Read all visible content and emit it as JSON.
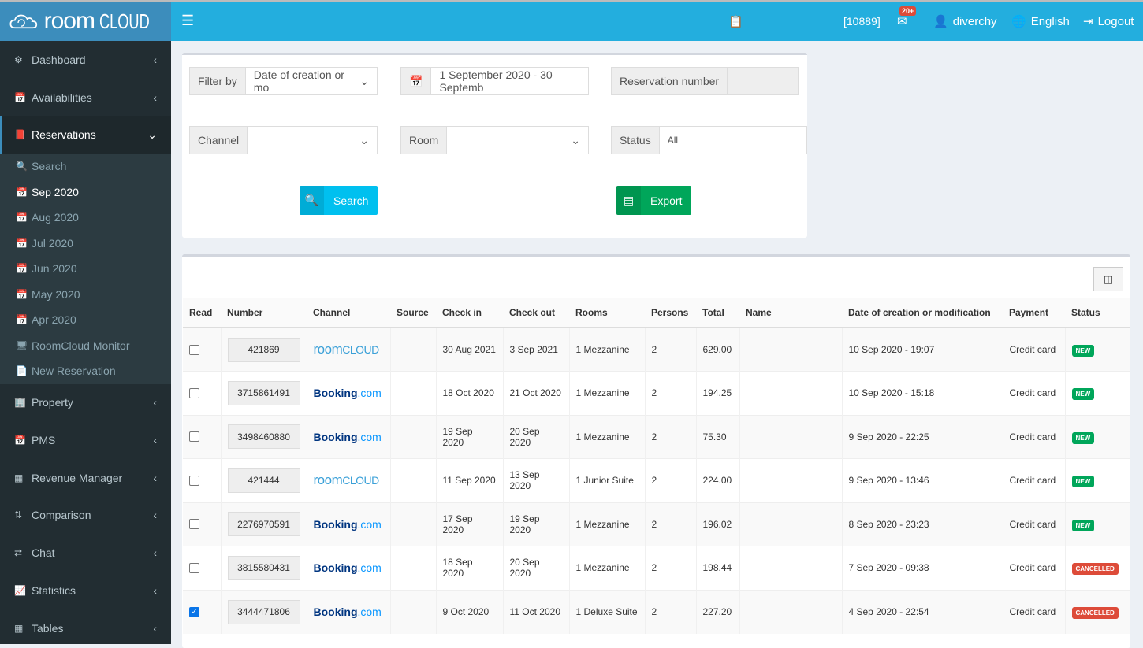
{
  "header": {
    "logo_word1": "room",
    "logo_word2": "CLOUD",
    "account_id": "[10889]",
    "mail_badge": "20+",
    "user": "diverchy",
    "language": "English",
    "logout": "Logout"
  },
  "sidebar": {
    "items": [
      {
        "label": "Dashboard",
        "icon": "gear"
      },
      {
        "label": "Availabilities",
        "icon": "calendar"
      },
      {
        "label": "Reservations",
        "icon": "book",
        "active": true
      }
    ],
    "sub": [
      {
        "label": "Search",
        "icon": "search"
      },
      {
        "label": "Sep 2020",
        "icon": "calendar",
        "current": true
      },
      {
        "label": "Aug 2020",
        "icon": "calendar"
      },
      {
        "label": "Jul 2020",
        "icon": "calendar"
      },
      {
        "label": "Jun 2020",
        "icon": "calendar"
      },
      {
        "label": "May 2020",
        "icon": "calendar"
      },
      {
        "label": "Apr 2020",
        "icon": "calendar"
      },
      {
        "label": "RoomCloud Monitor",
        "icon": "monitor"
      },
      {
        "label": "New Reservation",
        "icon": "file"
      }
    ],
    "items2": [
      {
        "label": "Property",
        "icon": "building"
      },
      {
        "label": "PMS",
        "icon": "calendar"
      },
      {
        "label": "Revenue Manager",
        "icon": "calculator"
      },
      {
        "label": "Comparison",
        "icon": "sort"
      },
      {
        "label": "Chat",
        "icon": "exchange"
      },
      {
        "label": "Statistics",
        "icon": "area-chart"
      },
      {
        "label": "Tables",
        "icon": "table"
      }
    ]
  },
  "filters": {
    "filter_by_label": "Filter by",
    "filter_by_value": "Date of creation or mo",
    "date_range": "1 September 2020 - 30 Septemb",
    "reservation_number_label": "Reservation number",
    "reservation_number_value": "",
    "channel_label": "Channel",
    "room_label": "Room",
    "status_label": "Status",
    "status_value": "All",
    "search": "Search",
    "export": "Export"
  },
  "table": {
    "headers": [
      "Read",
      "Number",
      "Channel",
      "Source",
      "Check in",
      "Check out",
      "Rooms",
      "Persons",
      "Total",
      "Name",
      "Date of creation or modification",
      "Payment",
      "Status"
    ],
    "rows": [
      {
        "read": false,
        "number": "421869",
        "channel": "roomcloud",
        "source": "",
        "checkin": "30 Aug 2021",
        "checkout": "3 Sep 2021",
        "rooms": "1 Mezzanine",
        "persons": "2",
        "total": "629.00",
        "name": "",
        "date": "10 Sep 2020 - 19:07",
        "payment": "Credit card",
        "status": "NEW"
      },
      {
        "read": false,
        "number": "3715861491",
        "channel": "booking",
        "source": "",
        "checkin": "18 Oct 2020",
        "checkout": "21 Oct 2020",
        "rooms": "1 Mezzanine",
        "persons": "2",
        "total": "194.25",
        "name": "",
        "date": "10 Sep 2020 - 15:18",
        "payment": "Credit card",
        "status": "NEW"
      },
      {
        "read": false,
        "number": "3498460880",
        "channel": "booking",
        "source": "",
        "checkin": "19 Sep 2020",
        "checkout": "20 Sep 2020",
        "rooms": "1 Mezzanine",
        "persons": "2",
        "total": "75.30",
        "name": "",
        "date": "9 Sep 2020 - 22:25",
        "payment": "Credit card",
        "status": "NEW"
      },
      {
        "read": false,
        "number": "421444",
        "channel": "roomcloud",
        "source": "",
        "checkin": "11 Sep 2020",
        "checkout": "13 Sep 2020",
        "rooms": "1 Junior Suite",
        "persons": "2",
        "total": "224.00",
        "name": "",
        "date": "9 Sep 2020 - 13:46",
        "payment": "Credit card",
        "status": "NEW"
      },
      {
        "read": false,
        "number": "2276970591",
        "channel": "booking",
        "source": "",
        "checkin": "17 Sep 2020",
        "checkout": "19 Sep 2020",
        "rooms": "1 Mezzanine",
        "persons": "2",
        "total": "196.02",
        "name": "",
        "date": "8 Sep 2020 - 23:23",
        "payment": "Credit card",
        "status": "NEW"
      },
      {
        "read": false,
        "number": "3815580431",
        "channel": "booking",
        "source": "",
        "checkin": "18 Sep 2020",
        "checkout": "20 Sep 2020",
        "rooms": "1 Mezzanine",
        "persons": "2",
        "total": "198.44",
        "name": "",
        "date": "7 Sep 2020 - 09:38",
        "payment": "Credit card",
        "status": "CANCELLED"
      },
      {
        "read": true,
        "number": "3444471806",
        "channel": "booking",
        "source": "",
        "checkin": "9 Oct 2020",
        "checkout": "11 Oct 2020",
        "rooms": "1 Deluxe Suite",
        "persons": "2",
        "total": "227.20",
        "name": "",
        "date": "4 Sep 2020 - 22:54",
        "payment": "Credit card",
        "status": "CANCELLED"
      }
    ]
  },
  "channel_logos": {
    "roomcloud_a": "room",
    "roomcloud_b": "CLOUD",
    "booking_a": "Booking",
    "booking_b": ".com"
  },
  "colors": {
    "topbar": "#23aede",
    "new": "#00a65a",
    "cancelled": "#dd4b39",
    "search_btn": "#00c0ef",
    "export_btn": "#00a65a"
  }
}
